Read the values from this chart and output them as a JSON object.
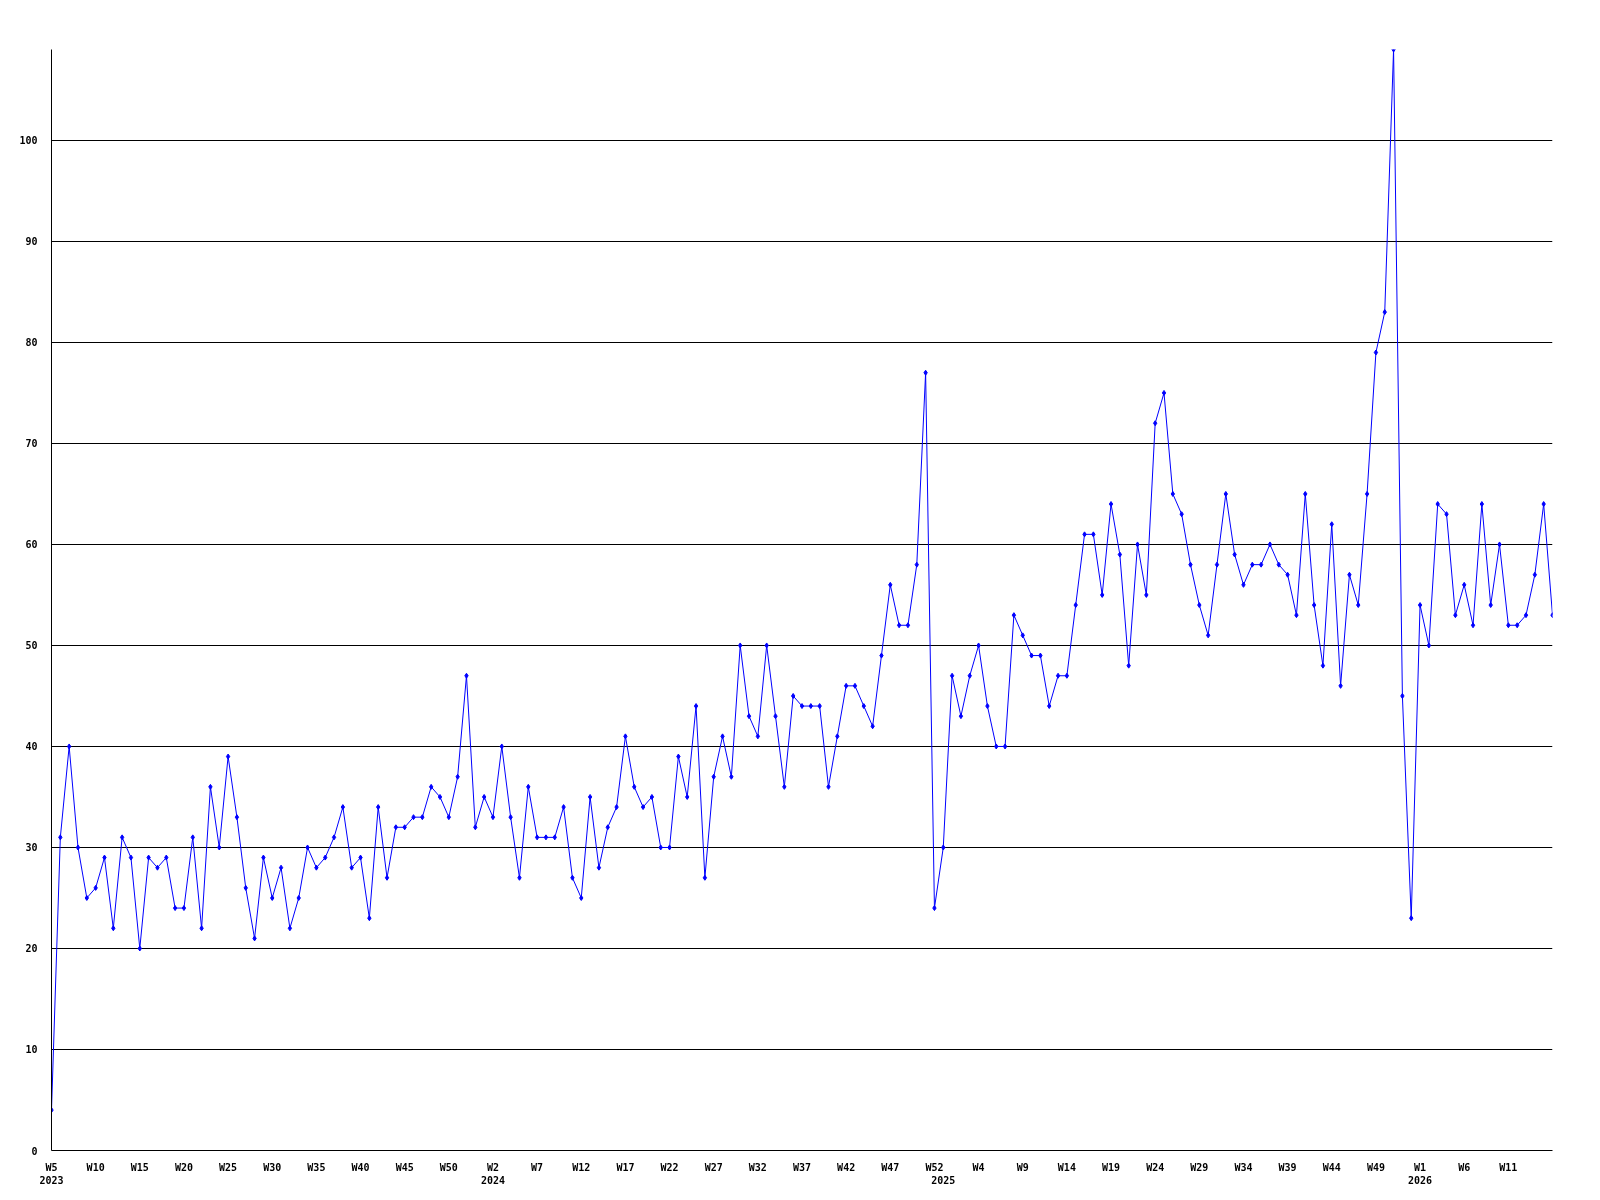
{
  "chart_data": {
    "type": "line",
    "categories": [
      "W5\n2023",
      null,
      null,
      null,
      null,
      "W10",
      null,
      null,
      null,
      null,
      "W15",
      null,
      null,
      null,
      null,
      "W20",
      null,
      null,
      null,
      null,
      "W25",
      null,
      null,
      null,
      null,
      "W30",
      null,
      null,
      null,
      null,
      "W35",
      null,
      null,
      null,
      null,
      "W40",
      null,
      null,
      null,
      null,
      "W45",
      null,
      null,
      null,
      null,
      "W50",
      null,
      null,
      null,
      null,
      "W2\n2024",
      null,
      null,
      null,
      null,
      "W7",
      null,
      null,
      null,
      null,
      "W12",
      null,
      null,
      null,
      null,
      "W17",
      null,
      null,
      null,
      null,
      "W22",
      null,
      null,
      null,
      null,
      "W27",
      null,
      null,
      null,
      null,
      "W32",
      null,
      null,
      null,
      null,
      "W37",
      null,
      null,
      null,
      null,
      "W42",
      null,
      null,
      null,
      null,
      "W47",
      null,
      null,
      null,
      null,
      "W52",
      "\n2025",
      null,
      null,
      null,
      "W4",
      null,
      null,
      null,
      null,
      "W9",
      null,
      null,
      null,
      null,
      "W14",
      null,
      null,
      null,
      null,
      "W19",
      null,
      null,
      null,
      null,
      "W24",
      null,
      null,
      null,
      null,
      "W29",
      null,
      null,
      null,
      null,
      "W34",
      null,
      null,
      null,
      null,
      "W39",
      null,
      null,
      null,
      null,
      "W44",
      null,
      null,
      null,
      null,
      "W49",
      null,
      null,
      null,
      null,
      "W1\n2026",
      null,
      null,
      null,
      null,
      "W6",
      null,
      null,
      null,
      null,
      "W11",
      null,
      null,
      null,
      null,
      null
    ],
    "series": [
      {
        "color": "#0000ff",
        "values": [
          4,
          31,
          40,
          30,
          25,
          26,
          29,
          22,
          31,
          29,
          20,
          29,
          28,
          29,
          24,
          24,
          31,
          22,
          36,
          30,
          39,
          33,
          26,
          21,
          29,
          25,
          28,
          22,
          25,
          30,
          28,
          29,
          31,
          34,
          28,
          29,
          23,
          34,
          27,
          32,
          32,
          33,
          33,
          36,
          35,
          33,
          37,
          47,
          32,
          35,
          33,
          40,
          33,
          27,
          36,
          31,
          31,
          31,
          34,
          27,
          25,
          35,
          28,
          32,
          34,
          41,
          36,
          34,
          35,
          30,
          30,
          39,
          35,
          44,
          27,
          37,
          41,
          37,
          50,
          43,
          41,
          50,
          43,
          36,
          45,
          44,
          44,
          44,
          36,
          41,
          46,
          46,
          44,
          42,
          49,
          56,
          52,
          52,
          58,
          77,
          24,
          30,
          47,
          43,
          47,
          50,
          44,
          40,
          40,
          53,
          51,
          49,
          49,
          44,
          47,
          47,
          54,
          61,
          61,
          55,
          64,
          59,
          48,
          60,
          55,
          72,
          75,
          65,
          63,
          58,
          54,
          51,
          58,
          65,
          59,
          56,
          58,
          58,
          60,
          58,
          57,
          53,
          65,
          54,
          48,
          62,
          46,
          57,
          54,
          65,
          79,
          83,
          109,
          45,
          23,
          54,
          50,
          64,
          63,
          53,
          56,
          52,
          64,
          54,
          60,
          52,
          52,
          53,
          57,
          64,
          53
        ]
      }
    ],
    "ylim": [
      0,
      109
    ],
    "yticks": [
      0,
      10,
      20,
      30,
      40,
      50,
      60,
      70,
      80,
      90,
      100
    ],
    "grid": "y",
    "marker": "diamond",
    "line_style": "solid"
  }
}
